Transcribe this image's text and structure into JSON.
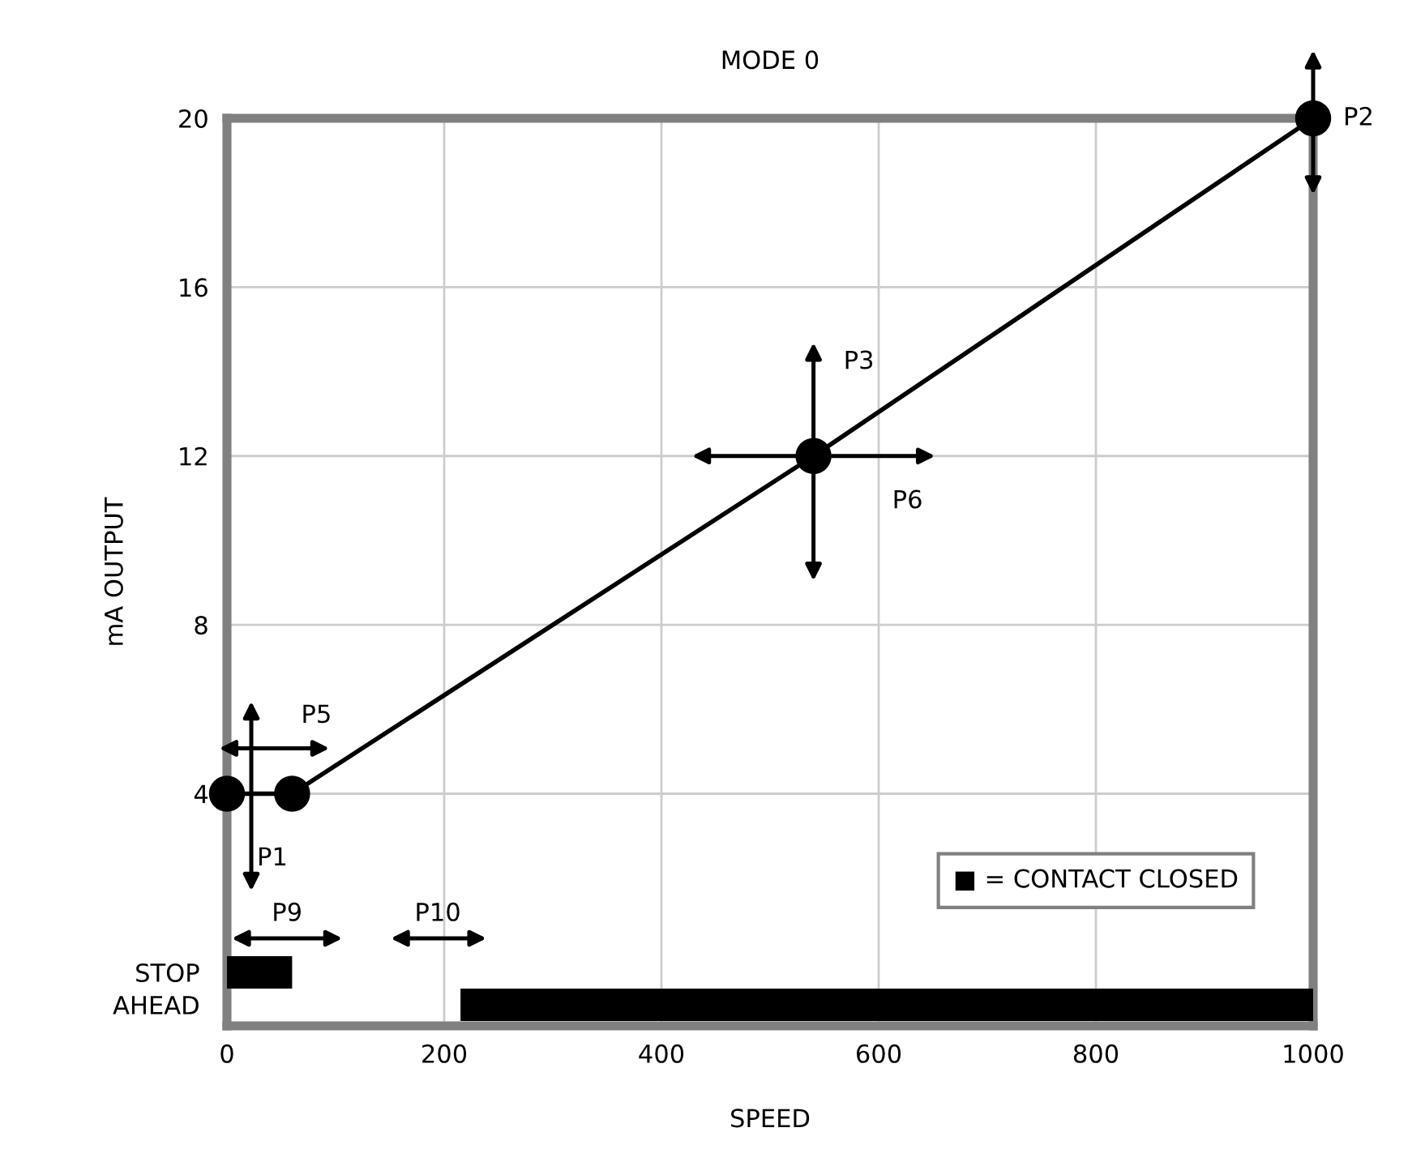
{
  "chart_data": [
    {
      "type": "line",
      "title": "MODE 0",
      "ylabel": "mA OUTPUT",
      "x": [
        0,
        60,
        540,
        1000
      ],
      "series": [
        {
          "color": "#000000",
          "values": [
            4,
            4,
            12,
            20
          ]
        }
      ],
      "marker": "circle",
      "line_style": "solid",
      "xlim": [
        0,
        1000
      ],
      "xticks": [
        0,
        200,
        400,
        600,
        800,
        1000
      ],
      "ylim": [
        -1.5,
        20
      ],
      "yticks": [
        4,
        8,
        12,
        16,
        20
      ],
      "grid": true,
      "tick_labels": "y",
      "annotations": [
        {
          "text": "P1",
          "x": 0,
          "y": 4
        },
        {
          "text": "P5",
          "x": 60,
          "y": 4
        },
        "P3",
        "P6",
        {
          "text": "P2",
          "x": 1000,
          "y": 20
        },
        "■ = CONTACT CLOSED"
      ]
    },
    {
      "type": "bar",
      "orientation": "horizontal",
      "categories": [
        "STOP",
        "AHEAD"
      ],
      "xlabel": "SPEED",
      "series": [
        {
          "color": "#000000",
          "values": [
            60,
            785
          ],
          "base": [
            0,
            215
          ]
        }
      ],
      "xlim": [
        0,
        1000
      ],
      "xticks": [
        0,
        200,
        400,
        600,
        800,
        1000
      ],
      "annotations": [
        "P9",
        "P10"
      ]
    }
  ]
}
